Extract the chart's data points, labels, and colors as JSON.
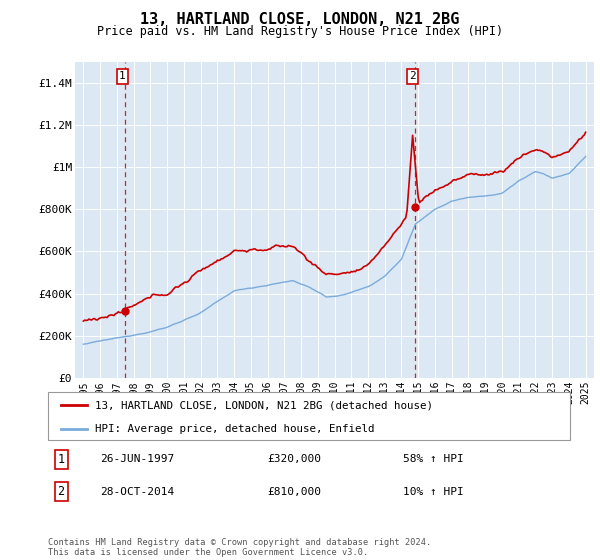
{
  "title": "13, HARTLAND CLOSE, LONDON, N21 2BG",
  "subtitle": "Price paid vs. HM Land Registry's House Price Index (HPI)",
  "hpi_label": "HPI: Average price, detached house, Enfield",
  "property_label": "13, HARTLAND CLOSE, LONDON, N21 2BG (detached house)",
  "transaction1_date": "26-JUN-1997",
  "transaction1_price": 320000,
  "transaction1_note": "58% ↑ HPI",
  "transaction2_date": "28-OCT-2014",
  "transaction2_price": 810000,
  "transaction2_note": "10% ↑ HPI",
  "footer": "Contains HM Land Registry data © Crown copyright and database right 2024.\nThis data is licensed under the Open Government Licence v3.0.",
  "bg_color": "#dce9f5",
  "hpi_color": "#7aabdb",
  "property_color": "#cc0000",
  "dashed_color": "#cc0000",
  "ylim": [
    0,
    1500000
  ],
  "yticks": [
    0,
    200000,
    400000,
    600000,
    800000,
    1000000,
    1200000,
    1400000
  ],
  "ytick_labels": [
    "£0",
    "£200K",
    "£400K",
    "£600K",
    "£800K",
    "£1M",
    "£1.2M",
    "£1.4M"
  ],
  "x_start_year": 1995,
  "x_end_year": 2025,
  "t1_year": 1997.48,
  "t1_price": 320000,
  "t2_year": 2014.83,
  "t2_price": 810000
}
